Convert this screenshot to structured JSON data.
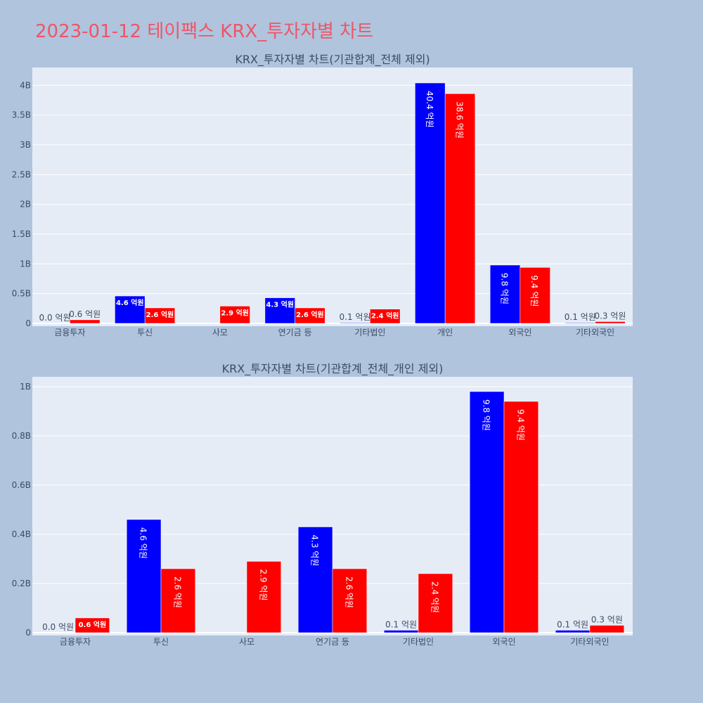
{
  "page": {
    "title": "2023-01-12 테이팩스 KRX_투자자별 차트",
    "title_color": "#ef5566",
    "background": "#b0c4de",
    "plot_background": "#e5ecf6"
  },
  "chart_data": [
    {
      "type": "bar",
      "title": "KRX_투자자별 차트(기관합계_전체 제외)",
      "categories": [
        "금융투자",
        "투신",
        "사모",
        "연기금 등",
        "기타법인",
        "개인",
        "외국인",
        "기타외국인"
      ],
      "series": [
        {
          "color": "#0000ff",
          "values": [
            0,
            460000000,
            null,
            430000000,
            10000000,
            4040000000,
            980000000,
            10000000
          ],
          "labels": [
            "0.0 억원",
            "4.6 억원",
            "",
            "4.3 억원",
            "0.1 억원",
            "40.4 억원",
            "9.8 억원",
            "0.1 억원"
          ]
        },
        {
          "color": "#ff0000",
          "values": [
            60000000,
            260000000,
            290000000,
            260000000,
            240000000,
            3860000000,
            940000000,
            30000000
          ],
          "labels": [
            "0.6 억원",
            "2.6 억원",
            "2.9 억원",
            "2.6 억원",
            "2.4 억원",
            "38.6 억원",
            "9.4 억원",
            "0.3 억원"
          ]
        }
      ],
      "ylim": [
        0,
        4300000000
      ],
      "yticks": [
        0,
        500000000,
        1000000000,
        1500000000,
        2000000000,
        2500000000,
        3000000000,
        3500000000,
        4000000000
      ],
      "ytick_labels": [
        "0",
        "0.5B",
        "1B",
        "1.5B",
        "2B",
        "2.5B",
        "3B",
        "3.5B",
        "4B"
      ],
      "grid": true
    },
    {
      "type": "bar",
      "title": "KRX_투자자별 차트(기관합계_전체_개인 제외)",
      "categories": [
        "금융투자",
        "투신",
        "사모",
        "연기금 등",
        "기타법인",
        "외국인",
        "기타외국인"
      ],
      "series": [
        {
          "color": "#0000ff",
          "values": [
            0,
            460000000,
            null,
            430000000,
            10000000,
            980000000,
            10000000
          ],
          "labels": [
            "0.0 억원",
            "4.6 억원",
            "",
            "4.3 억원",
            "0.1 억원",
            "9.8 억원",
            "0.1 억원"
          ]
        },
        {
          "color": "#ff0000",
          "values": [
            60000000,
            260000000,
            290000000,
            260000000,
            240000000,
            940000000,
            30000000
          ],
          "labels": [
            "0.6 억원",
            "2.6 억원",
            "2.9 억원",
            "2.6 억원",
            "2.4 억원",
            "9.4 억원",
            "0.3 억원"
          ]
        }
      ],
      "ylim": [
        0,
        1040000000
      ],
      "yticks": [
        0,
        200000000,
        400000000,
        600000000,
        800000000,
        1000000000
      ],
      "ytick_labels": [
        "0",
        "0.2B",
        "0.4B",
        "0.6B",
        "0.8B",
        "1B"
      ],
      "grid": true
    }
  ]
}
